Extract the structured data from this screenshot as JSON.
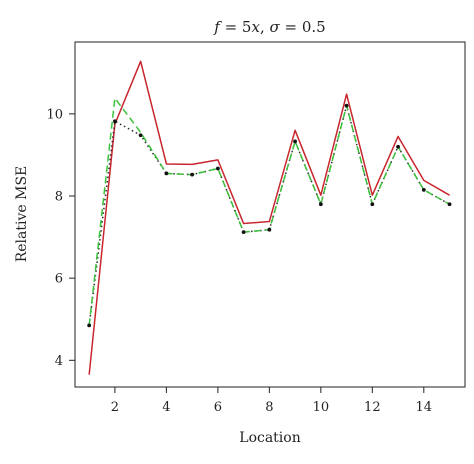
{
  "chart_data": {
    "type": "line",
    "title_parts": [
      "f",
      " = 5",
      "x",
      ", ",
      "σ",
      " = 0.5"
    ],
    "xlabel": "Location",
    "ylabel": "Relative MSE",
    "x": [
      1,
      2,
      3,
      4,
      5,
      6,
      7,
      8,
      9,
      10,
      11,
      12,
      13,
      14,
      15
    ],
    "xlim": [
      0.45,
      15.6
    ],
    "ylim": [
      3.35,
      11.75
    ],
    "xticks": [
      2,
      4,
      6,
      8,
      10,
      12,
      14
    ],
    "yticks": [
      4,
      6,
      8,
      10
    ],
    "grid": false,
    "series": [
      {
        "color": "#c8262e",
        "style": "solid",
        "markers": false,
        "values": [
          3.65,
          9.75,
          11.28,
          8.78,
          8.77,
          8.88,
          7.33,
          7.38,
          9.6,
          8.02,
          10.48,
          8.02,
          9.45,
          8.38,
          8.02
        ]
      },
      {
        "color": "#2a2a2a",
        "style": "dotted",
        "markers": true,
        "values": [
          4.85,
          9.82,
          9.48,
          8.55,
          8.52,
          8.67,
          7.12,
          7.18,
          9.33,
          7.8,
          10.2,
          7.8,
          9.2,
          8.15,
          7.8
        ]
      },
      {
        "color": "#3cc23c",
        "style": "dashed",
        "markers": false,
        "values": [
          4.85,
          10.38,
          9.55,
          8.55,
          8.52,
          8.67,
          7.12,
          7.18,
          9.33,
          7.8,
          10.2,
          7.8,
          9.2,
          8.15,
          7.8
        ]
      }
    ]
  }
}
